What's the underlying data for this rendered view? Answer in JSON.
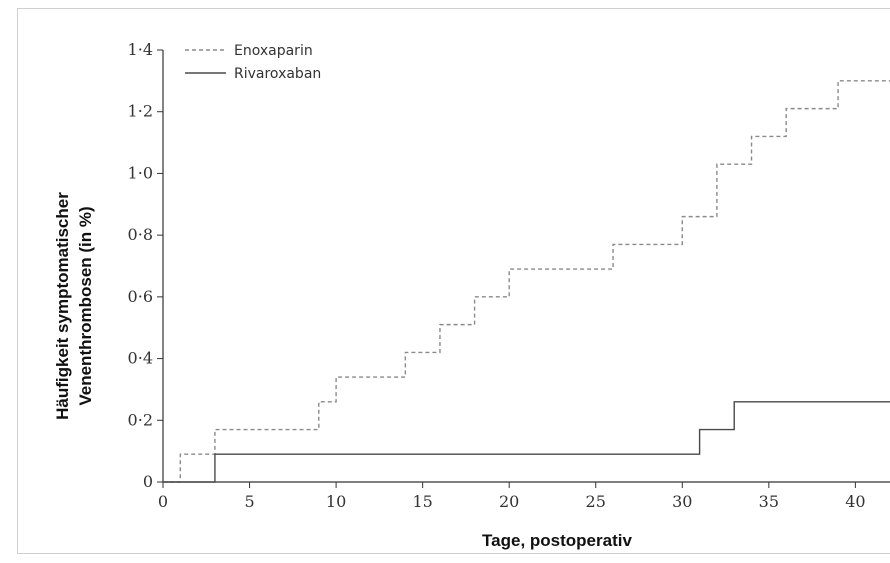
{
  "chart_data": {
    "type": "line",
    "title": "",
    "xlabel": "Tage, postoperativ",
    "ylabel_lines": [
      "Häufigkeit symptomatischer",
      "Venenthrombosen (in %)"
    ],
    "xlim": [
      0,
      42
    ],
    "ylim": [
      0,
      1.4
    ],
    "x_ticks": [
      0,
      5,
      10,
      15,
      20,
      25,
      30,
      35,
      40
    ],
    "x_tick_labels": [
      "0",
      "5",
      "10",
      "15",
      "20",
      "25",
      "30",
      "35",
      "40"
    ],
    "y_ticks": [
      0,
      0.2,
      0.4,
      0.6,
      0.8,
      1.0,
      1.2,
      1.4
    ],
    "y_tick_labels": [
      "0",
      "0·2",
      "0·4",
      "0·6",
      "0·8",
      "1·0",
      "1·2",
      "1·4"
    ],
    "step": true,
    "grid": false,
    "legend_position": "top-left",
    "series": [
      {
        "name": "Enoxaparin",
        "style": "dashed",
        "color": "#8a8a8a",
        "x": [
          0,
          1,
          3,
          9,
          10,
          14,
          16,
          18,
          20,
          26,
          30,
          32,
          34,
          36,
          39,
          42
        ],
        "y": [
          0,
          0.09,
          0.17,
          0.26,
          0.34,
          0.42,
          0.51,
          0.6,
          0.69,
          0.77,
          0.86,
          1.03,
          1.12,
          1.21,
          1.3,
          1.3
        ]
      },
      {
        "name": "Rivaroxaban",
        "style": "solid",
        "color": "#4a4a4a",
        "x": [
          0,
          3,
          31,
          33,
          42
        ],
        "y": [
          0,
          0.09,
          0.17,
          0.26,
          0.26
        ]
      }
    ]
  }
}
